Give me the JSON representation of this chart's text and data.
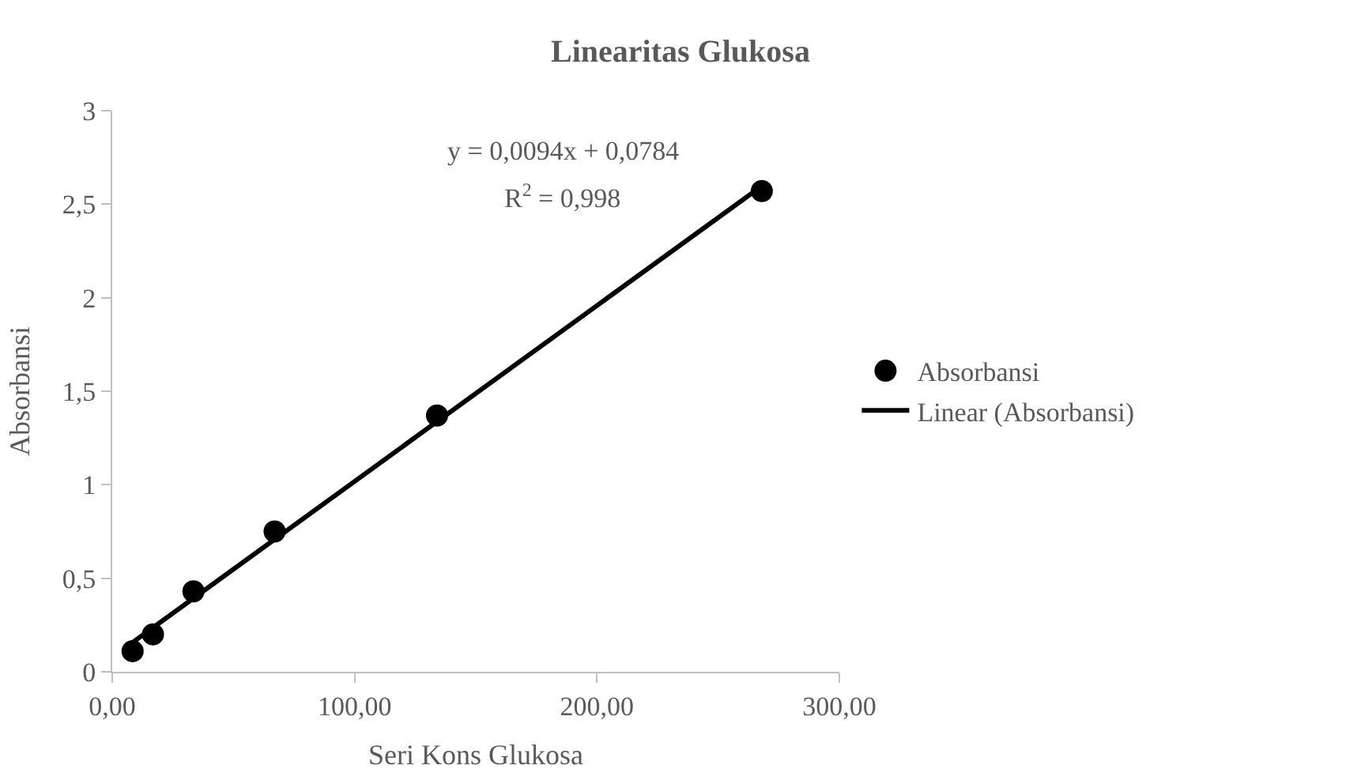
{
  "chart_data": {
    "type": "scatter",
    "title": "Linearitas Glukosa",
    "xlabel": "Seri Kons Glukosa",
    "ylabel": "Absorbansi",
    "x": [
      8.4,
      16.8,
      33.5,
      67,
      134,
      268
    ],
    "series": [
      {
        "name": "Absorbansi",
        "color": "#000000",
        "values": [
          0.11,
          0.2,
          0.43,
          0.75,
          1.37,
          2.57
        ],
        "marker": "circle"
      },
      {
        "name": "Linear (Absorbansi)",
        "type": "line",
        "color": "#000000",
        "x": [
          8.4,
          268
        ],
        "values": [
          0.157,
          2.597
        ],
        "marker": "none",
        "line_style": "solid"
      }
    ],
    "annotations": [
      "y = 0,0094x + 0,0784",
      "R$^{2}$ = 0,998"
    ],
    "xlim": [
      0,
      300
    ],
    "xticks": [
      {
        "value": 0,
        "label": "0,00"
      },
      {
        "value": 100,
        "label": "100,00"
      },
      {
        "value": 200,
        "label": "200,00"
      },
      {
        "value": 300,
        "label": "300,00"
      }
    ],
    "ylim": [
      0,
      3
    ],
    "yticks": [
      0,
      {
        "value": 0.5,
        "label": "0,5"
      },
      1,
      {
        "value": 1.5,
        "label": "1,5"
      },
      2,
      {
        "value": 2.5,
        "label": "2,5"
      },
      3
    ],
    "grid": false,
    "legend": "right"
  }
}
